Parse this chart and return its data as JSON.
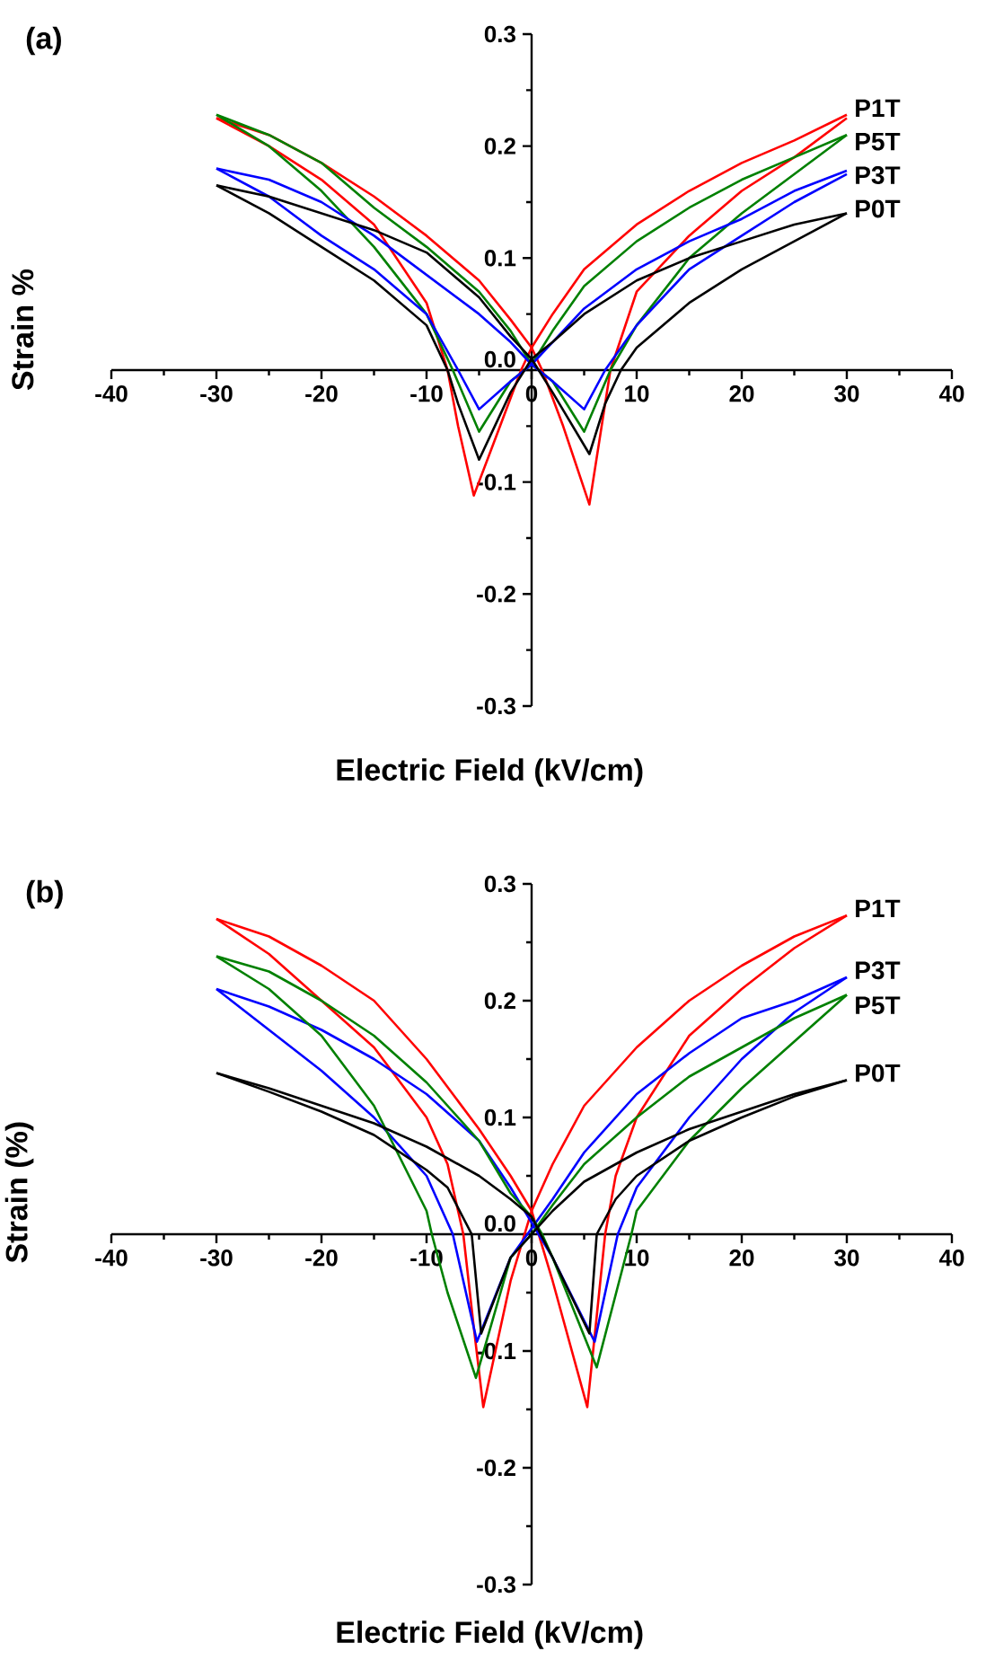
{
  "chart_data": [
    {
      "type": "line",
      "title": "(a)",
      "xlabel": "Electric Field (kV/cm)",
      "ylabel": "Strain %",
      "marker": "none",
      "line_style": "solid",
      "xlim": [
        -40,
        40
      ],
      "ylim": [
        -0.3,
        0.3
      ],
      "xticks": [
        -40,
        {
          "value": -35,
          "label": null
        },
        -30,
        {
          "value": -25,
          "label": null
        },
        -20,
        {
          "value": -15,
          "label": null
        },
        -10,
        {
          "value": -5,
          "label": null
        },
        0,
        {
          "value": 5,
          "label": null
        },
        10,
        {
          "value": 15,
          "label": null
        },
        20,
        {
          "value": 25,
          "label": null
        },
        30,
        {
          "value": 35,
          "label": null
        },
        40
      ],
      "yticks": [
        -0.3,
        {
          "value": -0.25,
          "label": null
        },
        -0.2,
        {
          "value": -0.15,
          "label": null
        },
        -0.1,
        {
          "value": -0.05,
          "label": null
        },
        {
          "value": 0,
          "label": "0.0"
        },
        {
          "value": 0.05,
          "label": null
        },
        0.1,
        {
          "value": 0.15,
          "label": null
        },
        0.2,
        {
          "value": 0.25,
          "label": null
        },
        0.3
      ],
      "series": [
        {
          "name": "P1T",
          "color": "#ff0000",
          "x": [
            30,
            25,
            20,
            15,
            10,
            5,
            2,
            0,
            -1,
            -3,
            -5.5,
            -7,
            -8,
            -10,
            -15,
            -20,
            -25,
            -30
          ],
          "values": [
            0.228,
            0.205,
            0.185,
            0.16,
            0.13,
            0.09,
            0.05,
            0.02,
            0.0,
            -0.05,
            -0.112,
            -0.05,
            0.0,
            0.06,
            0.13,
            0.17,
            0.2,
            0.225
          ]
        },
        {
          "color": "#ff0000",
          "x": [
            -30,
            -25,
            -20,
            -15,
            -10,
            -5,
            -2,
            0,
            1,
            3,
            5.5,
            7,
            7.5,
            10,
            15,
            20,
            25,
            30
          ],
          "values": [
            0.225,
            0.21,
            0.185,
            0.155,
            0.12,
            0.08,
            0.045,
            0.02,
            0.0,
            -0.05,
            -0.12,
            -0.03,
            0.0,
            0.07,
            0.12,
            0.16,
            0.19,
            0.225
          ]
        },
        {
          "name": "P5T",
          "color": "#008000",
          "x": [
            30,
            25,
            20,
            15,
            10,
            5,
            2,
            0,
            -2,
            -5,
            -7.5,
            -10,
            -15,
            -20,
            -25,
            -30
          ],
          "values": [
            0.21,
            0.19,
            0.17,
            0.145,
            0.115,
            0.075,
            0.035,
            0.005,
            -0.01,
            -0.055,
            0.0,
            0.05,
            0.11,
            0.16,
            0.2,
            0.228
          ]
        },
        {
          "color": "#008000",
          "x": [
            -30,
            -25,
            -20,
            -15,
            -10,
            -5,
            -2,
            0,
            2,
            5,
            7.5,
            10,
            15,
            20,
            25,
            30
          ],
          "values": [
            0.228,
            0.21,
            0.185,
            0.145,
            0.11,
            0.07,
            0.035,
            0.005,
            -0.01,
            -0.055,
            0.0,
            0.04,
            0.1,
            0.14,
            0.175,
            0.21
          ]
        },
        {
          "name": "P3T",
          "color": "#0000ff",
          "x": [
            30,
            25,
            20,
            15,
            10,
            5,
            2,
            0,
            -2,
            -5,
            -7,
            -10,
            -15,
            -20,
            -25,
            -30
          ],
          "values": [
            0.178,
            0.16,
            0.135,
            0.115,
            0.09,
            0.055,
            0.025,
            0.005,
            -0.01,
            -0.035,
            0.0,
            0.05,
            0.09,
            0.12,
            0.155,
            0.18
          ]
        },
        {
          "color": "#0000ff",
          "x": [
            -30,
            -25,
            -20,
            -15,
            -10,
            -5,
            -2,
            0,
            2,
            5,
            7,
            10,
            15,
            20,
            25,
            30
          ],
          "values": [
            0.18,
            0.17,
            0.15,
            0.12,
            0.085,
            0.05,
            0.025,
            0.005,
            -0.01,
            -0.035,
            0.0,
            0.04,
            0.09,
            0.12,
            0.15,
            0.175
          ]
        },
        {
          "name": "P0T",
          "color": "#000000",
          "x": [
            30,
            25,
            20,
            15,
            10,
            5,
            2,
            0,
            -2,
            -5,
            -7,
            -8,
            -10,
            -15,
            -20,
            -25,
            -30
          ],
          "values": [
            0.14,
            0.13,
            0.115,
            0.1,
            0.08,
            0.05,
            0.025,
            0.01,
            -0.02,
            -0.08,
            -0.03,
            0.0,
            0.04,
            0.08,
            0.11,
            0.14,
            0.165
          ]
        },
        {
          "color": "#000000",
          "x": [
            -30,
            -25,
            -20,
            -15,
            -10,
            -5,
            -2,
            0,
            2,
            5.5,
            7,
            8.5,
            10,
            15,
            20,
            25,
            30
          ],
          "values": [
            0.165,
            0.155,
            0.14,
            0.125,
            0.105,
            0.065,
            0.03,
            0.01,
            -0.02,
            -0.075,
            -0.03,
            0.0,
            0.02,
            0.06,
            0.09,
            0.115,
            0.14
          ]
        }
      ]
    },
    {
      "type": "line",
      "title": "(b)",
      "xlabel": "Electric Field (kV/cm)",
      "ylabel": "Strain (%)",
      "marker": "none",
      "line_style": "solid",
      "xlim": [
        -40,
        40
      ],
      "ylim": [
        -0.3,
        0.3
      ],
      "xticks": [
        -40,
        {
          "value": -35,
          "label": null
        },
        -30,
        {
          "value": -25,
          "label": null
        },
        -20,
        {
          "value": -15,
          "label": null
        },
        -10,
        {
          "value": -5,
          "label": null
        },
        0,
        {
          "value": 5,
          "label": null
        },
        10,
        {
          "value": 15,
          "label": null
        },
        20,
        {
          "value": 25,
          "label": null
        },
        30,
        {
          "value": 35,
          "label": null
        },
        40
      ],
      "yticks": [
        -0.3,
        {
          "value": -0.25,
          "label": null
        },
        -0.2,
        {
          "value": -0.15,
          "label": null
        },
        -0.1,
        {
          "value": -0.05,
          "label": null
        },
        {
          "value": 0,
          "label": "0.0"
        },
        {
          "value": 0.05,
          "label": null
        },
        0.1,
        {
          "value": 0.15,
          "label": null
        },
        0.2,
        {
          "value": 0.25,
          "label": null
        },
        0.3
      ],
      "series": [
        {
          "name": "P1T",
          "color": "#ff0000",
          "x": [
            30,
            25,
            20,
            15,
            10,
            5,
            2,
            0,
            -2,
            -4.6,
            -5.5,
            -6.5,
            -8,
            -10,
            -15,
            -20,
            -25,
            -30
          ],
          "values": [
            0.273,
            0.255,
            0.23,
            0.2,
            0.16,
            0.11,
            0.06,
            0.02,
            -0.04,
            -0.148,
            -0.08,
            0.0,
            0.06,
            0.1,
            0.16,
            0.2,
            0.24,
            0.27
          ]
        },
        {
          "color": "#ff0000",
          "x": [
            -30,
            -25,
            -20,
            -15,
            -10,
            -5,
            -2,
            0,
            2,
            5.3,
            6.2,
            7,
            8,
            10,
            15,
            20,
            25,
            30
          ],
          "values": [
            0.27,
            0.255,
            0.23,
            0.2,
            0.15,
            0.09,
            0.05,
            0.02,
            -0.04,
            -0.148,
            -0.07,
            0.0,
            0.05,
            0.1,
            0.17,
            0.21,
            0.245,
            0.273
          ]
        },
        {
          "name": "P3T",
          "color": "#0000ff",
          "x": [
            30,
            25,
            20,
            15,
            10,
            5,
            2,
            0,
            -2,
            -5.2,
            -7.5,
            -10,
            -15,
            -20,
            -25,
            -30
          ],
          "values": [
            0.22,
            0.2,
            0.185,
            0.155,
            0.12,
            0.07,
            0.03,
            0.005,
            -0.02,
            -0.092,
            0.0,
            0.05,
            0.1,
            0.14,
            0.175,
            0.21
          ]
        },
        {
          "color": "#0000ff",
          "x": [
            -30,
            -25,
            -20,
            -15,
            -10,
            -5,
            -2,
            0,
            2,
            6,
            8.2,
            10,
            15,
            20,
            25,
            30
          ],
          "values": [
            0.21,
            0.195,
            0.175,
            0.15,
            0.12,
            0.08,
            0.04,
            0.01,
            -0.02,
            -0.092,
            0.0,
            0.04,
            0.1,
            0.15,
            0.19,
            0.22
          ]
        },
        {
          "name": "P5T",
          "color": "#008000",
          "x": [
            30,
            25,
            20,
            15,
            10,
            5,
            2,
            0,
            -2,
            -5.3,
            -8,
            -9.5,
            -10,
            -15,
            -20,
            -25,
            -30
          ],
          "values": [
            0.205,
            0.185,
            0.16,
            0.135,
            0.1,
            0.06,
            0.025,
            0.0,
            -0.02,
            -0.123,
            -0.05,
            0.0,
            0.02,
            0.11,
            0.17,
            0.21,
            0.238
          ]
        },
        {
          "color": "#008000",
          "x": [
            -30,
            -25,
            -20,
            -15,
            -10,
            -5,
            -2,
            0,
            1,
            2,
            6.2,
            9.5,
            10,
            15,
            20,
            25,
            30
          ],
          "values": [
            0.238,
            0.225,
            0.2,
            0.17,
            0.13,
            0.08,
            0.035,
            0.015,
            0.0,
            -0.02,
            -0.114,
            0.0,
            0.02,
            0.08,
            0.125,
            0.165,
            0.205
          ]
        },
        {
          "name": "P0T",
          "color": "#000000",
          "x": [
            30,
            25,
            20,
            15,
            10,
            5,
            2,
            0,
            -2,
            -4.8,
            -5.7,
            -8,
            -10,
            -15,
            -20,
            -25,
            -30
          ],
          "values": [
            0.132,
            0.12,
            0.105,
            0.09,
            0.07,
            0.045,
            0.02,
            0.0,
            -0.02,
            -0.085,
            0.0,
            0.04,
            0.055,
            0.085,
            0.105,
            0.122,
            0.138
          ]
        },
        {
          "color": "#000000",
          "x": [
            -30,
            -25,
            -20,
            -15,
            -10,
            -5,
            -2,
            0,
            2,
            5.5,
            6.2,
            8,
            10,
            15,
            20,
            25,
            30
          ],
          "values": [
            0.138,
            0.125,
            0.11,
            0.095,
            0.075,
            0.05,
            0.03,
            0.015,
            -0.02,
            -0.085,
            0.0,
            0.03,
            0.05,
            0.08,
            0.1,
            0.118,
            0.132
          ]
        }
      ]
    }
  ]
}
